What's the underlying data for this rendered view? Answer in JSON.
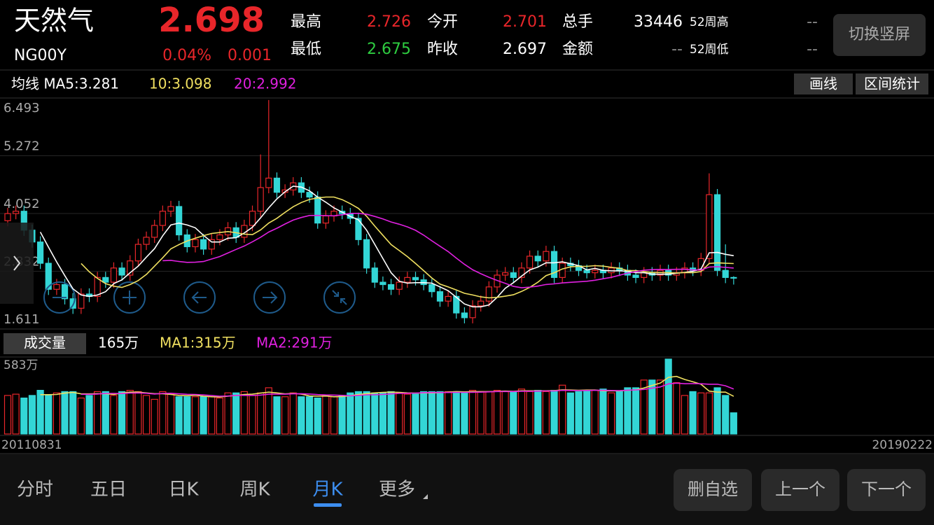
{
  "header": {
    "name": "天然气",
    "code": "NG00Y",
    "price": "2.698",
    "change_pct": "0.04%",
    "change": "0.001",
    "stats": [
      [
        "最高",
        "2.726",
        "今开",
        "2.701",
        "总手",
        "33446",
        "52周高",
        "--"
      ],
      [
        "最低",
        "2.675",
        "昨收",
        "2.697",
        "金额",
        "--",
        "52周低",
        "--"
      ]
    ],
    "rotate_button": "切换竖屏"
  },
  "ma_bar": {
    "label": "均线 MA5:3.281",
    "ma10": "10:3.098",
    "ma20": "20:2.992",
    "buttons": [
      "画线",
      "区间统计"
    ]
  },
  "volume_bar": {
    "button": "成交量",
    "current": "165万",
    "ma1": "MA1:315万",
    "ma2": "MA2:291万"
  },
  "chart_data": {
    "type": "candlestick",
    "open": [
      3.9,
      4.05,
      4.1,
      3.7,
      3.45,
      3.0,
      2.45,
      2.55,
      2.25,
      2.05,
      2.35,
      2.3,
      2.7,
      2.6,
      2.9,
      2.75,
      3.05,
      3.4,
      3.55,
      3.8,
      4.1,
      4.2,
      3.6,
      3.35,
      3.5,
      3.3,
      3.5,
      3.6,
      3.75,
      3.55,
      3.8,
      4.1,
      4.6,
      4.8,
      4.5,
      4.55,
      4.7,
      4.5,
      4.4,
      3.85,
      4.0,
      4.1,
      4.05,
      3.95,
      3.5,
      2.9,
      2.6,
      2.55,
      2.45,
      2.6,
      2.7,
      2.65,
      2.55,
      2.4,
      2.2,
      2.3,
      1.95,
      1.85,
      2.1,
      2.2,
      2.5,
      2.75,
      2.8,
      2.7,
      2.9,
      3.15,
      3.05,
      3.25,
      2.7,
      3.0,
      2.95,
      2.85,
      2.8,
      2.85,
      2.8,
      2.9,
      2.85,
      2.75,
      2.7,
      2.8,
      2.75,
      2.85,
      2.75,
      2.8,
      2.9,
      2.85,
      3.1,
      4.45,
      2.85,
      2.7
    ],
    "high": [
      4.17,
      4.22,
      4.22,
      3.82,
      3.57,
      3.12,
      2.67,
      2.67,
      2.37,
      2.47,
      2.47,
      2.82,
      2.82,
      3.02,
      3.02,
      3.17,
      3.52,
      3.67,
      3.92,
      4.22,
      4.32,
      4.32,
      3.72,
      3.62,
      3.62,
      3.62,
      3.72,
      3.87,
      3.87,
      3.92,
      4.22,
      5.3,
      6.45,
      4.92,
      4.67,
      4.82,
      4.82,
      4.62,
      4.52,
      4.12,
      4.22,
      4.22,
      4.17,
      4.07,
      3.62,
      3.02,
      2.72,
      2.67,
      2.72,
      2.82,
      2.82,
      2.77,
      2.67,
      2.52,
      2.42,
      2.42,
      2.07,
      2.22,
      2.32,
      2.62,
      2.87,
      2.92,
      2.92,
      3.02,
      3.27,
      3.27,
      3.37,
      3.37,
      3.12,
      3.12,
      3.07,
      2.97,
      2.97,
      2.97,
      3.02,
      3.02,
      2.97,
      2.87,
      2.92,
      2.92,
      2.97,
      2.97,
      2.92,
      3.02,
      3.02,
      3.22,
      4.9,
      4.57,
      3.4,
      2.726
    ],
    "low": [
      3.78,
      3.93,
      3.58,
      3.33,
      2.88,
      2.33,
      2.33,
      2.13,
      1.93,
      1.93,
      2.18,
      2.18,
      2.48,
      2.48,
      2.63,
      2.63,
      2.93,
      3.28,
      3.43,
      3.68,
      3.98,
      3.48,
      3.23,
      3.23,
      3.18,
      3.18,
      3.38,
      3.48,
      3.43,
      3.43,
      3.68,
      3.98,
      4.48,
      4.38,
      4.38,
      4.43,
      4.38,
      4.28,
      3.73,
      3.73,
      3.88,
      3.93,
      3.83,
      3.38,
      2.78,
      2.48,
      2.43,
      2.33,
      2.33,
      2.48,
      2.53,
      2.43,
      2.28,
      2.08,
      2.08,
      1.83,
      1.73,
      1.73,
      1.98,
      2.08,
      2.38,
      2.63,
      2.58,
      2.58,
      2.78,
      2.93,
      2.93,
      2.58,
      2.58,
      2.83,
      2.73,
      2.68,
      2.68,
      2.68,
      2.68,
      2.73,
      2.63,
      2.58,
      2.58,
      2.63,
      2.63,
      2.63,
      2.63,
      2.68,
      2.73,
      2.73,
      2.98,
      2.73,
      2.58,
      2.55
    ],
    "close": [
      4.05,
      4.1,
      3.7,
      3.45,
      3.0,
      2.45,
      2.55,
      2.25,
      2.05,
      2.35,
      2.3,
      2.7,
      2.6,
      2.9,
      2.75,
      3.05,
      3.4,
      3.55,
      3.8,
      4.1,
      4.2,
      3.6,
      3.35,
      3.5,
      3.3,
      3.5,
      3.6,
      3.75,
      3.55,
      3.8,
      4.1,
      4.6,
      4.8,
      4.5,
      4.55,
      4.7,
      4.5,
      4.4,
      3.85,
      4.0,
      4.1,
      4.05,
      3.95,
      3.5,
      2.9,
      2.6,
      2.55,
      2.45,
      2.6,
      2.7,
      2.65,
      2.55,
      2.4,
      2.2,
      2.3,
      1.95,
      1.85,
      2.1,
      2.2,
      2.5,
      2.75,
      2.8,
      2.7,
      2.9,
      3.15,
      3.05,
      3.25,
      2.7,
      3.0,
      2.95,
      2.85,
      2.8,
      2.85,
      2.8,
      2.9,
      2.85,
      2.75,
      2.7,
      2.8,
      2.75,
      2.85,
      2.75,
      2.8,
      2.9,
      2.85,
      3.1,
      4.45,
      2.85,
      2.7,
      2.698
    ],
    "ylim": [
      1.611,
      6.493
    ],
    "yticks": [
      1.611,
      2.832,
      4.052,
      5.272,
      6.493
    ],
    "volume": {
      "values": [
        300,
        310,
        280,
        300,
        340,
        300,
        320,
        330,
        330,
        280,
        300,
        330,
        330,
        300,
        330,
        340,
        330,
        300,
        270,
        330,
        310,
        290,
        290,
        290,
        290,
        290,
        280,
        320,
        320,
        330,
        300,
        320,
        360,
        290,
        290,
        320,
        290,
        290,
        280,
        300,
        290,
        300,
        320,
        330,
        330,
        320,
        320,
        330,
        320,
        310,
        310,
        330,
        330,
        330,
        330,
        330,
        320,
        340,
        330,
        330,
        340,
        330,
        330,
        350,
        330,
        340,
        330,
        340,
        380,
        320,
        330,
        340,
        340,
        350,
        320,
        330,
        360,
        360,
        420,
        420,
        420,
        583,
        400,
        300,
        330,
        320,
        320,
        360,
        300,
        165
      ],
      "ylim": [
        0,
        583
      ],
      "yticks": [
        0,
        {
          "value": 583,
          "label": "583万"
        }
      ]
    },
    "date_range": [
      "20110831",
      "20190222"
    ]
  },
  "tabs": [
    "分时",
    "五日",
    "日K",
    "周K",
    "月K",
    "更多"
  ],
  "buttons": [
    "删自选",
    "上一个",
    "下一个"
  ]
}
